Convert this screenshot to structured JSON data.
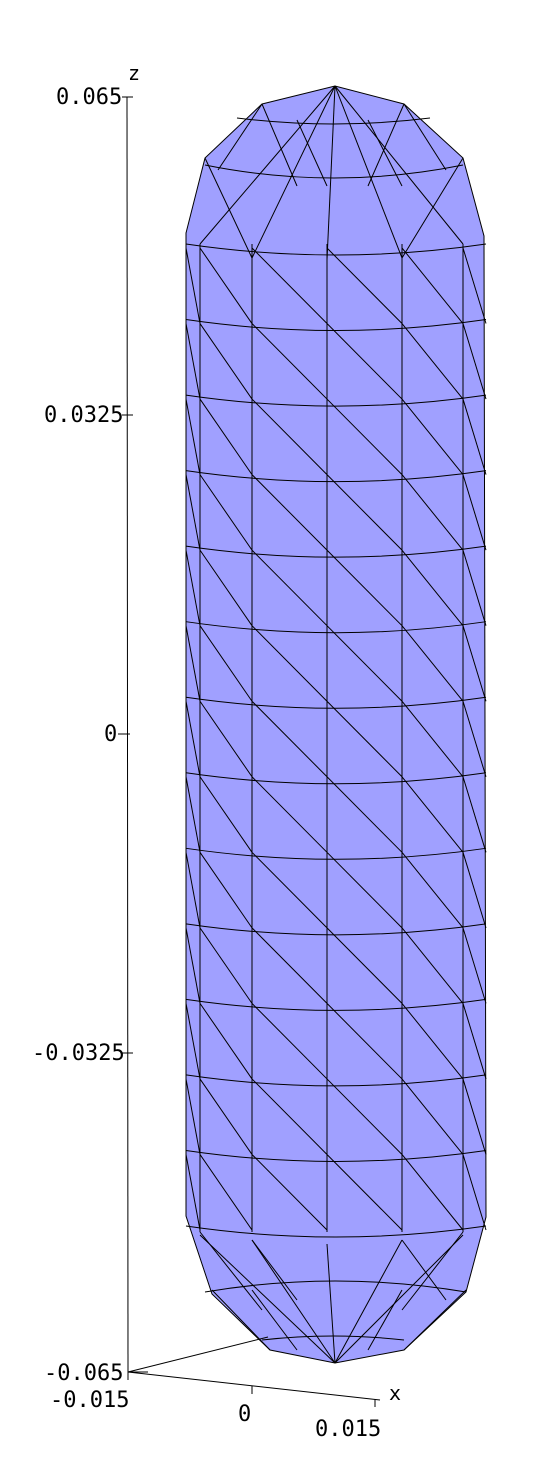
{
  "chart_data": {
    "type": "surface3d",
    "shape": "capsule",
    "face_color": "#a0a0ff",
    "edge_color": "#000000",
    "z_axis": {
      "name": "z",
      "ticks": [
        "0.065",
        "0.0325",
        "0",
        "-0.0325",
        "-0.065"
      ],
      "range": [
        -0.065,
        0.065
      ]
    },
    "x_axis": {
      "name": "x",
      "ticks": [
        "-0.015",
        "0",
        "0.015"
      ],
      "range": [
        -0.015,
        0.015
      ]
    }
  }
}
